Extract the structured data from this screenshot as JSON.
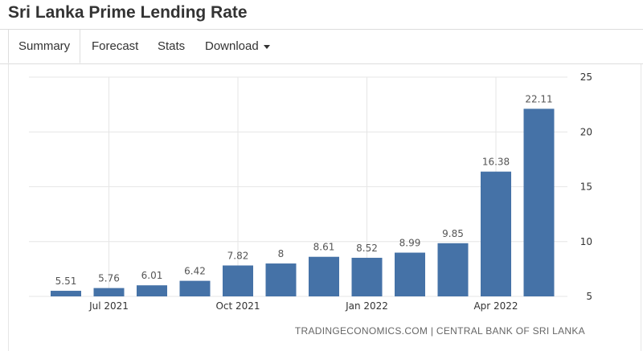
{
  "header": {
    "title": "Sri Lanka Prime Lending Rate"
  },
  "tabs": [
    {
      "label": "Summary"
    },
    {
      "label": "Forecast"
    },
    {
      "label": "Stats"
    },
    {
      "label": "Download"
    }
  ],
  "source": "TRADINGECONOMICS.COM | CENTRAL BANK OF SRI LANKA",
  "colors": {
    "bar": "#4572a7",
    "grid": "#e6e6e6"
  },
  "chart_data": {
    "type": "bar",
    "categories": [
      "Jun 2021",
      "Jul 2021",
      "Aug 2021",
      "Sep 2021",
      "Oct 2021",
      "Nov 2021",
      "Dec 2021",
      "Jan 2022",
      "Feb 2022",
      "Mar 2022",
      "Apr 2022",
      "May 2022"
    ],
    "values": [
      5.51,
      5.76,
      6.01,
      6.42,
      7.82,
      8,
      8.61,
      8.52,
      8.99,
      9.85,
      16.38,
      22.11
    ],
    "data_labels": [
      "5.51",
      "5.76",
      "6.01",
      "6.42",
      "7.82",
      "8",
      "8.61",
      "8.52",
      "8.99",
      "9.85",
      "16.38",
      "22.11"
    ],
    "x_tick_labels": [
      {
        "label": "Jul 2021",
        "index": 1
      },
      {
        "label": "Oct 2021",
        "index": 4
      },
      {
        "label": "Jan 2022",
        "index": 7
      },
      {
        "label": "Apr 2022",
        "index": 10
      }
    ],
    "y_ticks": [
      5,
      10,
      15,
      20,
      25
    ],
    "ylim": [
      5,
      25
    ],
    "y_axis_side": "right",
    "grid": true,
    "title": "Sri Lanka Prime Lending Rate",
    "xlabel": "",
    "ylabel": ""
  }
}
